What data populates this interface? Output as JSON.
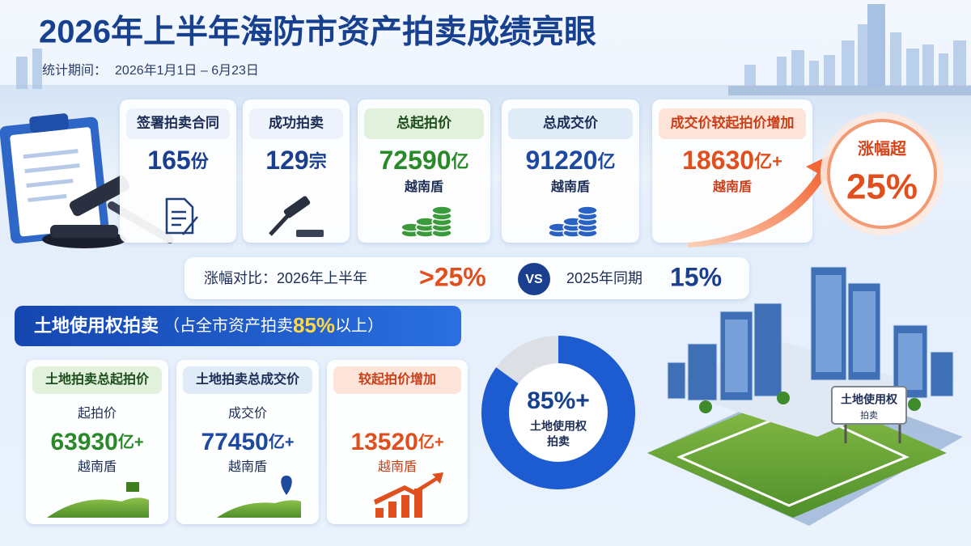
{
  "header": {
    "title": "2026年上半年海防市资产拍卖成绩亮眼",
    "period_label": "统计期间：",
    "period": "2026年1月1日 – 6月23日"
  },
  "stats": [
    {
      "label": "签署拍卖合同",
      "value": "165",
      "unit": "份"
    },
    {
      "label": "成功拍卖",
      "value": "129",
      "unit": "宗"
    },
    {
      "label": "总起拍价",
      "value": "72590",
      "unit": "亿",
      "currency": "越南盾"
    },
    {
      "label": "总成交价",
      "value": "91220",
      "unit": "亿",
      "currency": "越南盾"
    },
    {
      "label": "成交价较起拍价增加",
      "value": "18630",
      "unit": "亿+",
      "currency": "越南盾"
    }
  ],
  "badge": {
    "label": "涨幅超",
    "value": "25%"
  },
  "comparison": {
    "label": "涨幅对比：",
    "current_period": "2026年上半年",
    "current_value": ">25%",
    "vs": "VS",
    "previous_period": "2025年同期",
    "previous_value": "15%"
  },
  "land": {
    "title": "土地使用权拍卖",
    "note_prefix": "（占全市资产拍卖",
    "note_value": "85%",
    "note_suffix": "以上）",
    "cards": [
      {
        "heading": "土地拍卖总起拍价",
        "label": "起拍价",
        "value": "63930",
        "unit": "亿+",
        "currency": "越南盾"
      },
      {
        "heading": "土地拍卖总成交价",
        "label": "成交价",
        "value": "77450",
        "unit": "亿+",
        "currency": "越南盾"
      },
      {
        "heading": "较起拍价增加",
        "value": "13520",
        "unit": "亿+",
        "currency": "越南盾"
      }
    ]
  },
  "donut": {
    "value": 85,
    "label": "85%+",
    "caption_line1": "土地使用权",
    "caption_line2": "拍卖"
  },
  "sign": {
    "line1": "土地使用权",
    "line2": "拍卖"
  }
}
